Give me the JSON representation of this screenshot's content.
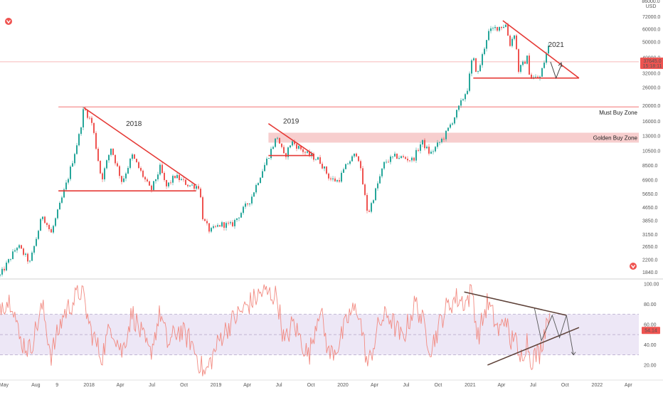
{
  "chart_data": [
    {
      "type": "candlestick",
      "currency_label": "USD",
      "y_scale": "log",
      "ylim": [
        1700,
        86000
      ],
      "y_tick_labels": [
        "86000.0",
        "72000.0",
        "60000.0",
        "50000.0",
        "40000.0",
        "32000.0",
        "26000.0",
        "20000.0",
        "16000.0",
        "13000.0",
        "10500.0",
        "8500.0",
        "6900.0",
        "5650.0",
        "4650.0",
        "3850.0",
        "3150.0",
        "2650.0",
        "2200.0",
        "1840.0"
      ],
      "y_ticks": [
        86000,
        72000,
        60000,
        50000,
        40000,
        32000,
        26000,
        20000,
        16000,
        13000,
        10500,
        8500,
        6900,
        5650,
        4650,
        3850,
        3150,
        2650,
        2200,
        1840
      ],
      "x_tick_labels": [
        "May",
        "Aug",
        "9",
        "2018",
        "Apr",
        "Jul",
        "Oct",
        "2019",
        "Apr",
        "Jul",
        "Oct",
        "2020",
        "Apr",
        "Jul",
        "Oct",
        "2021",
        "Apr",
        "Jul",
        "Oct",
        "2022",
        "Apr"
      ],
      "x_ticks": [
        "2017-05-01",
        "2017-08-01",
        "2017-10-01",
        "2018-01-01",
        "2018-04-01",
        "2018-07-01",
        "2018-10-01",
        "2019-01-01",
        "2019-04-01",
        "2019-07-01",
        "2019-10-01",
        "2020-01-01",
        "2020-04-01",
        "2020-07-01",
        "2020-10-01",
        "2021-01-01",
        "2021-04-01",
        "2021-07-01",
        "2021-10-01",
        "2022-01-01",
        "2022-04-01"
      ],
      "xlim": [
        "2017-04-20",
        "2022-05-01"
      ],
      "price_path": [
        [
          "2017-04-20",
          1750
        ],
        [
          "2017-06-10",
          2700
        ],
        [
          "2017-07-15",
          2100
        ],
        [
          "2017-08-20",
          4200
        ],
        [
          "2017-09-14",
          3200
        ],
        [
          "2017-11-01",
          7000
        ],
        [
          "2017-12-05",
          13500
        ],
        [
          "2017-12-17",
          19500
        ],
        [
          "2018-01-10",
          15500
        ],
        [
          "2018-02-06",
          6900
        ],
        [
          "2018-03-05",
          11000
        ],
        [
          "2018-04-06",
          6700
        ],
        [
          "2018-05-05",
          9800
        ],
        [
          "2018-06-28",
          5900
        ],
        [
          "2018-07-25",
          8300
        ],
        [
          "2018-08-10",
          6200
        ],
        [
          "2018-09-05",
          7300
        ],
        [
          "2018-10-15",
          6400
        ],
        [
          "2018-11-14",
          6300
        ],
        [
          "2018-11-25",
          3900
        ],
        [
          "2018-12-15",
          3300
        ],
        [
          "2019-01-15",
          3650
        ],
        [
          "2019-02-15",
          3600
        ],
        [
          "2019-04-10",
          5200
        ],
        [
          "2019-05-15",
          8000
        ],
        [
          "2019-06-26",
          13000
        ],
        [
          "2019-07-17",
          9500
        ],
        [
          "2019-08-06",
          12000
        ],
        [
          "2019-09-20",
          10000
        ],
        [
          "2019-10-25",
          9200
        ],
        [
          "2019-11-25",
          7000
        ],
        [
          "2019-12-18",
          6800
        ],
        [
          "2020-01-15",
          8800
        ],
        [
          "2020-02-12",
          10300
        ],
        [
          "2020-03-13",
          4200
        ],
        [
          "2020-04-30",
          8900
        ],
        [
          "2020-06-01",
          9700
        ],
        [
          "2020-07-20",
          9200
        ],
        [
          "2020-08-15",
          12000
        ],
        [
          "2020-09-08",
          10000
        ],
        [
          "2020-10-20",
          13000
        ],
        [
          "2020-11-25",
          18500
        ],
        [
          "2020-12-25",
          26000
        ],
        [
          "2021-01-08",
          41000
        ],
        [
          "2021-01-22",
          31000
        ],
        [
          "2021-02-21",
          57000
        ],
        [
          "2021-03-13",
          61000
        ],
        [
          "2021-04-14",
          64000
        ],
        [
          "2021-04-25",
          48000
        ],
        [
          "2021-05-10",
          58000
        ],
        [
          "2021-05-19",
          33000
        ],
        [
          "2021-06-15",
          40000
        ],
        [
          "2021-06-22",
          30000
        ],
        [
          "2021-07-20",
          29800
        ],
        [
          "2021-08-14",
          47000
        ],
        [
          "2021-08-20",
          37645
        ]
      ],
      "last_price_label": "37645.0",
      "last_price_timer": "15:18:11",
      "last_price": 37645,
      "annotations": [
        {
          "text": "2018",
          "x": "2018-05-10",
          "y": 15000
        },
        {
          "text": "2019",
          "x": "2019-08-05",
          "y": 15500
        },
        {
          "text": "2021",
          "x": "2021-09-05",
          "y": 46500
        }
      ],
      "zones": [
        {
          "label": "Must Buy Zone",
          "kind": "line",
          "y": 19700,
          "from": "2017-10-05"
        },
        {
          "label": "Golden Buy Zone",
          "kind": "band",
          "y_low": 11800,
          "y_high": 13600,
          "from": "2019-06-01"
        }
      ],
      "trendlines": [
        {
          "pattern": "2018 descending triangle",
          "from": [
            "2017-10-05",
            5900
          ],
          "to": [
            "2018-11-05",
            5900
          ]
        },
        {
          "pattern": "2018 descending triangle",
          "from": [
            "2017-12-17",
            19500
          ],
          "to": [
            "2018-11-05",
            6400
          ]
        },
        {
          "pattern": "2019 triangle",
          "from": [
            "2019-06-01",
            9800
          ],
          "to": [
            "2019-10-10",
            9800
          ]
        },
        {
          "pattern": "2019 triangle",
          "from": [
            "2019-06-01",
            15500
          ],
          "to": [
            "2019-10-10",
            9900
          ]
        },
        {
          "pattern": "2021 descending triangle",
          "from": [
            "2021-01-10",
            29800
          ],
          "to": [
            "2021-11-10",
            29800
          ]
        },
        {
          "pattern": "2021 descending triangle",
          "from": [
            "2021-04-05",
            68000
          ],
          "to": [
            "2021-11-10",
            29800
          ]
        }
      ],
      "projection": [
        [
          "2021-08-20",
          37645
        ],
        [
          "2021-09-05",
          29800
        ],
        [
          "2021-09-20",
          36000
        ]
      ],
      "colors": {
        "up": "#26a69a",
        "down": "#ef5350",
        "trendline": "#e53935",
        "zone_fill": "#f6c6c6",
        "zone_line": "#f48f8f",
        "price_line": "#f4a3a3",
        "price_label_bg": "#ef5350"
      }
    },
    {
      "type": "line",
      "ylim": [
        8,
        102
      ],
      "y_tick_labels": [
        "100.00",
        "80.00",
        "60.00",
        "40.00",
        "20.00"
      ],
      "y_ticks": [
        100,
        80,
        60,
        40,
        20
      ],
      "band": [
        30,
        70
      ],
      "last_value_label": "54.14",
      "last_value": 54.14,
      "trendlines": [
        {
          "from": [
            "2020-12-15",
            92
          ],
          "to": [
            "2021-10-05",
            69
          ]
        },
        {
          "from": [
            "2021-02-20",
            20
          ],
          "to": [
            "2021-11-10",
            57
          ]
        }
      ],
      "projection": [
        [
          "2021-07-05",
          76
        ],
        [
          "2021-07-25",
          44
        ],
        [
          "2021-08-25",
          69
        ],
        [
          "2021-09-15",
          47
        ],
        [
          "2021-10-05",
          69
        ],
        [
          "2021-10-25",
          30
        ]
      ],
      "rsi_path": [
        [
          "2017-04-20",
          80
        ],
        [
          "2017-05-25",
          85
        ],
        [
          "2017-06-15",
          45
        ],
        [
          "2017-07-15",
          35
        ],
        [
          "2017-08-20",
          78
        ],
        [
          "2017-09-14",
          30
        ],
        [
          "2017-10-20",
          70
        ],
        [
          "2017-12-10",
          94
        ],
        [
          "2018-01-05",
          55
        ],
        [
          "2018-02-06",
          28
        ],
        [
          "2018-03-05",
          60
        ],
        [
          "2018-04-06",
          32
        ],
        [
          "2018-05-05",
          72
        ],
        [
          "2018-06-25",
          30
        ],
        [
          "2018-07-25",
          72
        ],
        [
          "2018-08-15",
          40
        ],
        [
          "2018-09-15",
          55
        ],
        [
          "2018-10-20",
          44
        ],
        [
          "2018-11-20",
          18
        ],
        [
          "2018-11-30",
          10
        ],
        [
          "2019-01-15",
          48
        ],
        [
          "2019-02-20",
          65
        ],
        [
          "2019-04-05",
          80
        ],
        [
          "2019-05-15",
          92
        ],
        [
          "2019-06-26",
          88
        ],
        [
          "2019-07-17",
          40
        ],
        [
          "2019-08-10",
          62
        ],
        [
          "2019-09-25",
          28
        ],
        [
          "2019-10-26",
          78
        ],
        [
          "2019-11-22",
          30
        ],
        [
          "2019-12-20",
          40
        ],
        [
          "2020-01-20",
          70
        ],
        [
          "2020-02-14",
          76
        ],
        [
          "2020-03-13",
          18
        ],
        [
          "2020-04-15",
          62
        ],
        [
          "2020-05-10",
          70
        ],
        [
          "2020-06-20",
          45
        ],
        [
          "2020-07-28",
          82
        ],
        [
          "2020-08-20",
          60
        ],
        [
          "2020-09-10",
          36
        ],
        [
          "2020-10-20",
          74
        ],
        [
          "2020-11-20",
          86
        ],
        [
          "2020-12-20",
          82
        ],
        [
          "2021-01-08",
          94
        ],
        [
          "2021-01-22",
          46
        ],
        [
          "2021-02-20",
          82
        ],
        [
          "2021-03-25",
          52
        ],
        [
          "2021-04-15",
          70
        ],
        [
          "2021-04-25",
          36
        ],
        [
          "2021-05-10",
          58
        ],
        [
          "2021-05-19",
          20
        ],
        [
          "2021-06-15",
          46
        ],
        [
          "2021-06-22",
          26
        ],
        [
          "2021-07-20",
          32
        ],
        [
          "2021-08-14",
          72
        ],
        [
          "2021-08-20",
          54
        ]
      ],
      "colors": {
        "line": "#f28b82",
        "band_fill": "#ede7f6",
        "band_border": "#b3a6c8",
        "trendline": "#5d4037",
        "last_value_bg": "#ef5350"
      }
    }
  ]
}
